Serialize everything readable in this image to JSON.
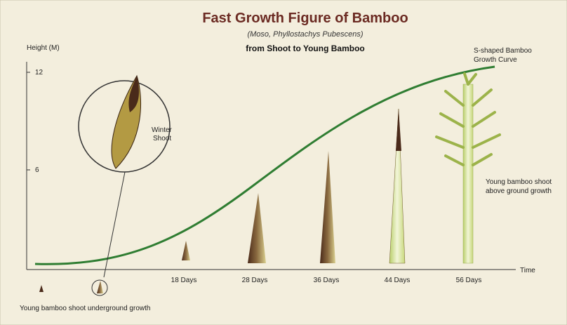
{
  "header": {
    "title": "Fast Growth Figure of Bamboo",
    "subtitle": "(Moso, Phyllostachys Pubescens)",
    "caption": "from Shoot to Young Bamboo"
  },
  "axes": {
    "y_label": "Height (M)",
    "y_ticks": [
      "12",
      "6"
    ],
    "x_label": "Time"
  },
  "stages": [
    "18 Days",
    "28 Days",
    "36 Days",
    "44 Days",
    "56 Days"
  ],
  "annotations": {
    "curve": [
      "S-shaped Bamboo",
      "Growth Curve"
    ],
    "winter": [
      "Winter",
      "Shoot"
    ],
    "above": [
      "Young bamboo shoot",
      "above ground growth"
    ],
    "underground": "Young bamboo shoot underground growth"
  }
}
